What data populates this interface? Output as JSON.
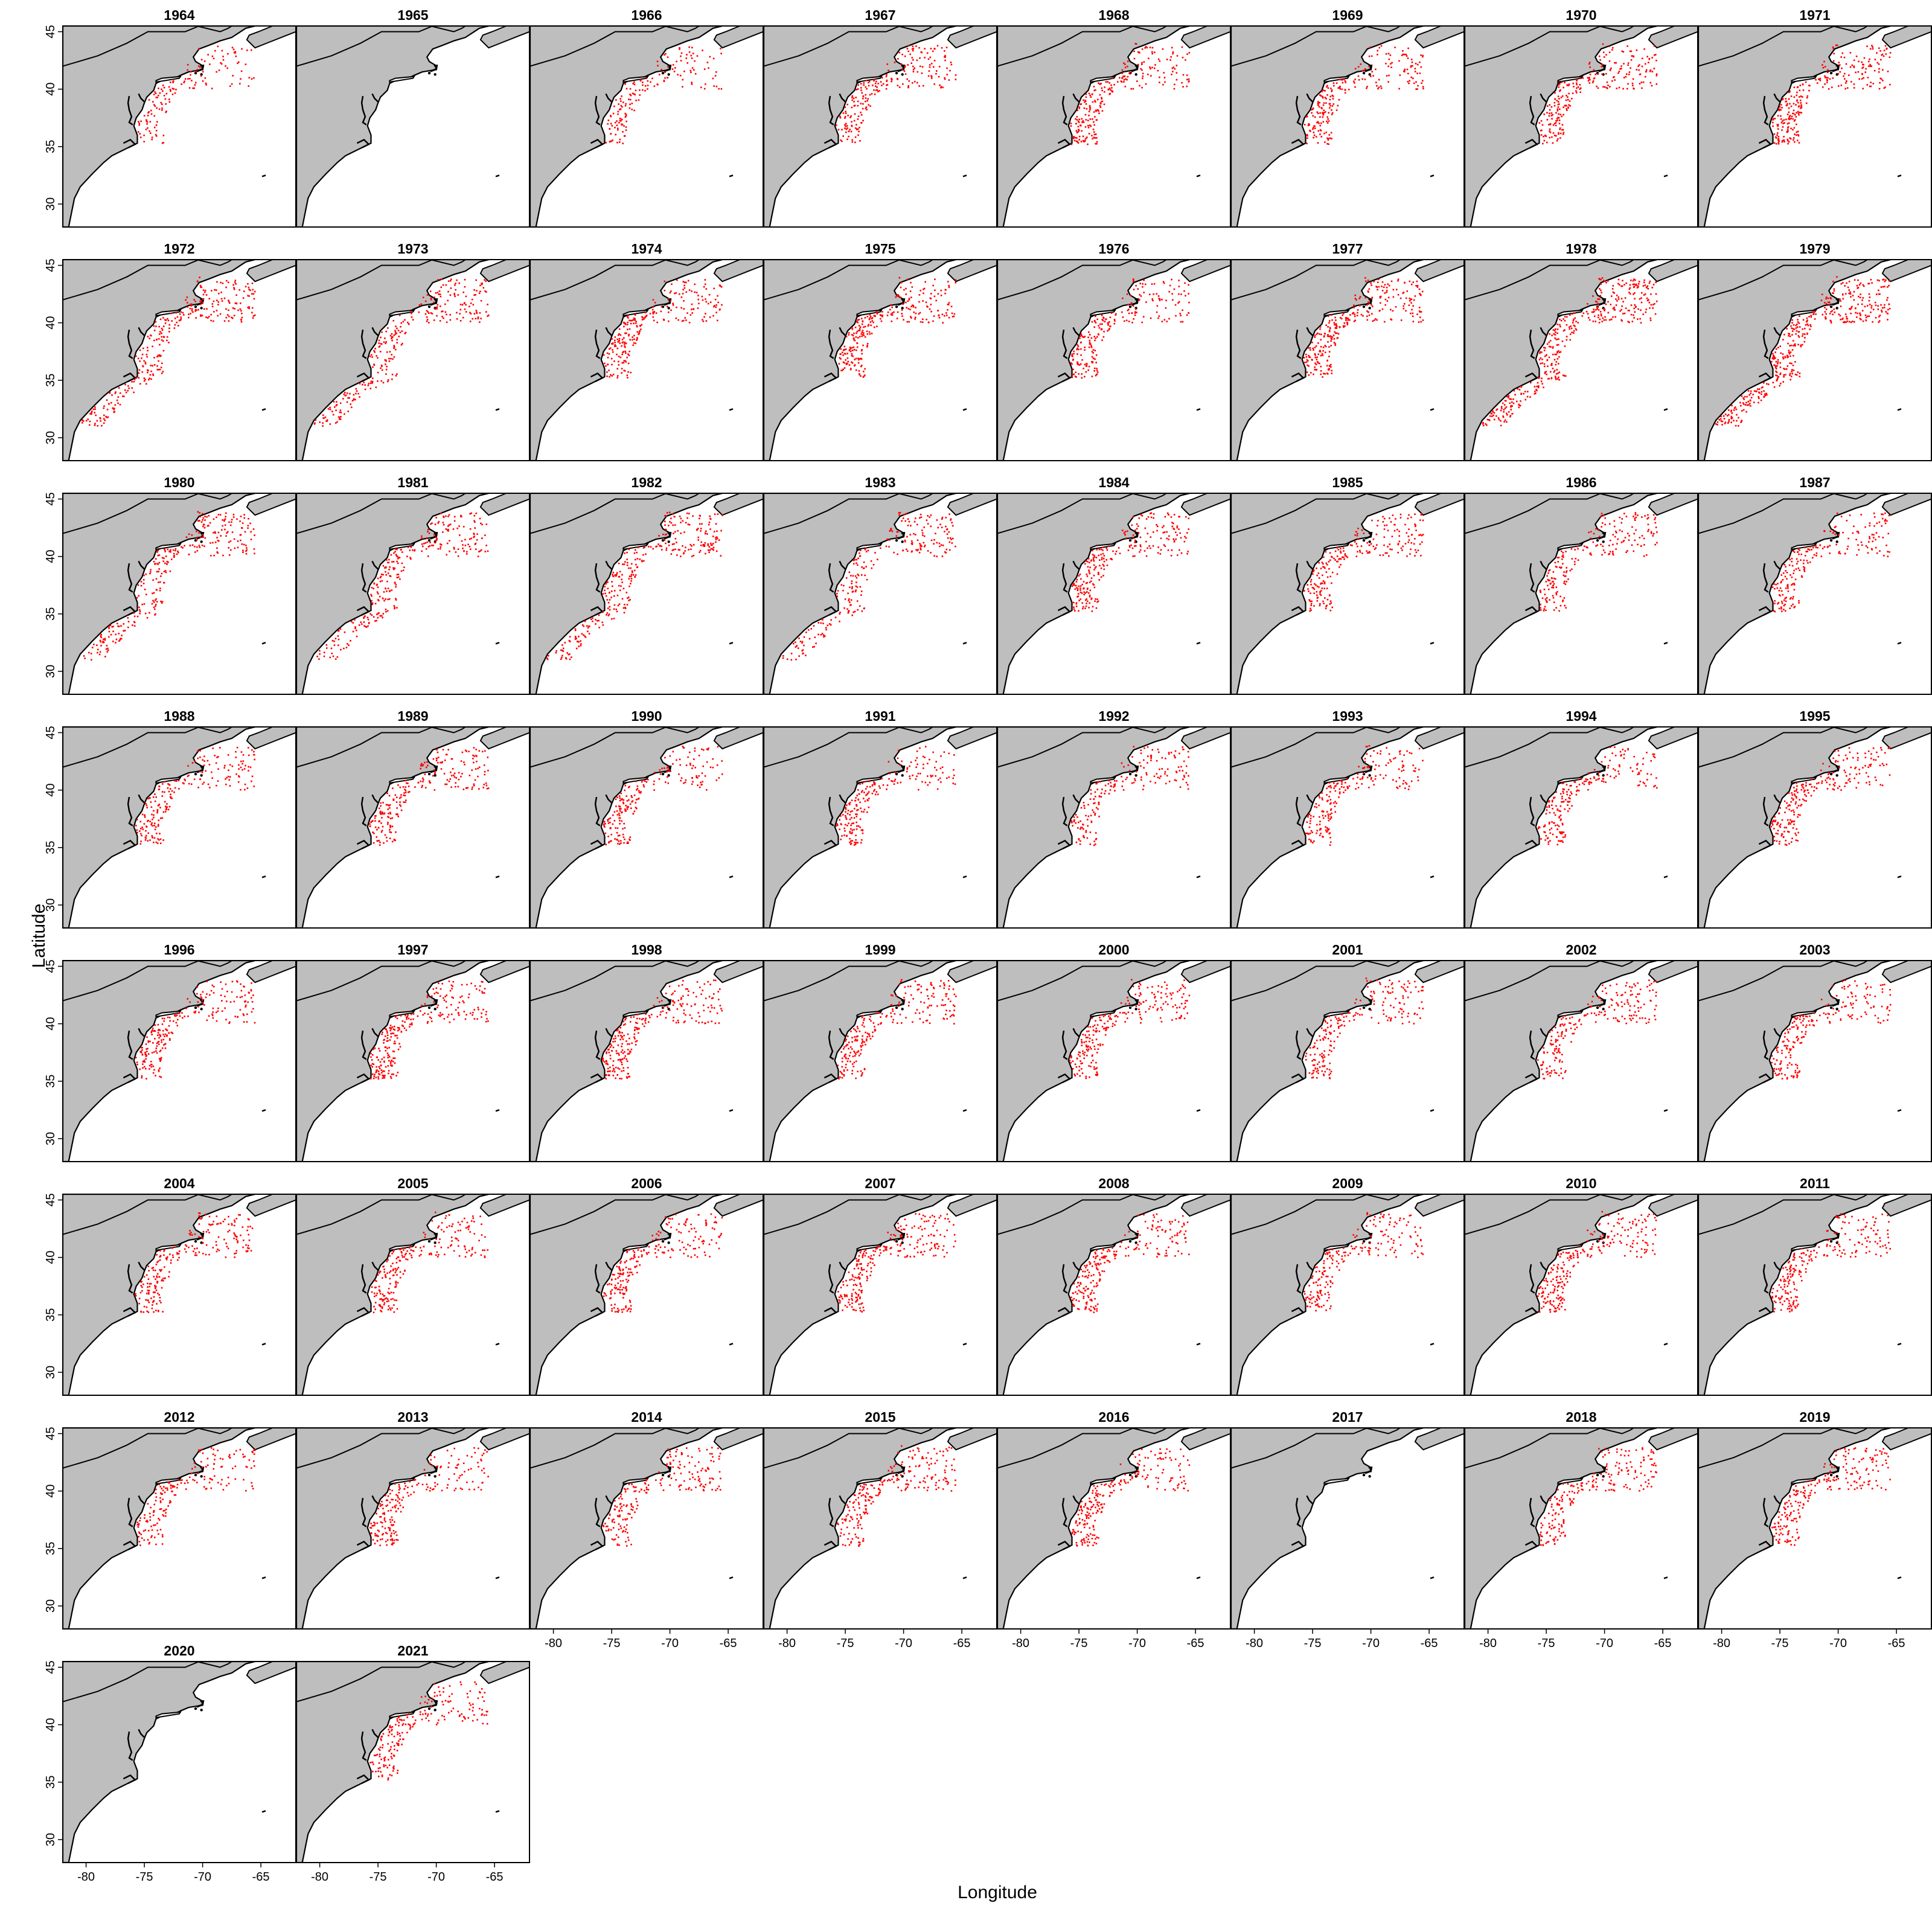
{
  "figure": {
    "xlabel": "Longitude",
    "ylabel": "Latitude",
    "x_ticks": [
      "-80",
      "-75",
      "-70",
      "-65"
    ],
    "y_ticks": [
      "30",
      "35",
      "40",
      "45"
    ],
    "x_tick_values": [
      -80,
      -75,
      -70,
      -65
    ],
    "y_tick_values": [
      30,
      35,
      40,
      45
    ],
    "xlim": [
      -82,
      -62
    ],
    "ylim": [
      28,
      45.5
    ],
    "columns": 8,
    "land_color": "#bebebe",
    "sea_color": "#ffffff",
    "point_color": "#ff0000"
  },
  "panels": [
    {
      "year": "1964",
      "density": 0.35
    },
    {
      "year": "1965",
      "density": 0.0
    },
    {
      "year": "1966",
      "density": 0.4
    },
    {
      "year": "1967",
      "density": 0.55
    },
    {
      "year": "1968",
      "density": 0.6
    },
    {
      "year": "1969",
      "density": 0.55
    },
    {
      "year": "1970",
      "density": 0.6
    },
    {
      "year": "1971",
      "density": 0.65
    },
    {
      "year": "1972",
      "density": 0.75
    },
    {
      "year": "1973",
      "density": 0.7
    },
    {
      "year": "1974",
      "density": 0.6
    },
    {
      "year": "1975",
      "density": 0.65
    },
    {
      "year": "1976",
      "density": 0.55
    },
    {
      "year": "1977",
      "density": 0.7
    },
    {
      "year": "1978",
      "density": 0.95
    },
    {
      "year": "1979",
      "density": 1.0
    },
    {
      "year": "1980",
      "density": 0.7
    },
    {
      "year": "1981",
      "density": 0.7
    },
    {
      "year": "1982",
      "density": 0.75
    },
    {
      "year": "1983",
      "density": 0.6
    },
    {
      "year": "1984",
      "density": 0.6
    },
    {
      "year": "1985",
      "density": 0.55
    },
    {
      "year": "1986",
      "density": 0.5
    },
    {
      "year": "1987",
      "density": 0.5
    },
    {
      "year": "1988",
      "density": 0.5
    },
    {
      "year": "1989",
      "density": 0.55
    },
    {
      "year": "1990",
      "density": 0.5
    },
    {
      "year": "1991",
      "density": 0.5
    },
    {
      "year": "1992",
      "density": 0.45
    },
    {
      "year": "1993",
      "density": 0.5
    },
    {
      "year": "1994",
      "density": 0.5
    },
    {
      "year": "1995",
      "density": 0.55
    },
    {
      "year": "1996",
      "density": 0.55
    },
    {
      "year": "1997",
      "density": 0.6
    },
    {
      "year": "1998",
      "density": 0.6
    },
    {
      "year": "1999",
      "density": 0.55
    },
    {
      "year": "2000",
      "density": 0.55
    },
    {
      "year": "2001",
      "density": 0.5
    },
    {
      "year": "2002",
      "density": 0.5
    },
    {
      "year": "2003",
      "density": 0.5
    },
    {
      "year": "2004",
      "density": 0.55
    },
    {
      "year": "2005",
      "density": 0.55
    },
    {
      "year": "2006",
      "density": 0.55
    },
    {
      "year": "2007",
      "density": 0.6
    },
    {
      "year": "2008",
      "density": 0.55
    },
    {
      "year": "2009",
      "density": 0.5
    },
    {
      "year": "2010",
      "density": 0.6
    },
    {
      "year": "2011",
      "density": 0.55
    },
    {
      "year": "2012",
      "density": 0.45
    },
    {
      "year": "2013",
      "density": 0.5
    },
    {
      "year": "2014",
      "density": 0.5
    },
    {
      "year": "2015",
      "density": 0.55
    },
    {
      "year": "2016",
      "density": 0.55
    },
    {
      "year": "2017",
      "density": 0.0
    },
    {
      "year": "2018",
      "density": 0.5
    },
    {
      "year": "2019",
      "density": 0.55
    },
    {
      "year": "2020",
      "density": 0.0
    },
    {
      "year": "2021",
      "density": 0.5
    }
  ]
}
